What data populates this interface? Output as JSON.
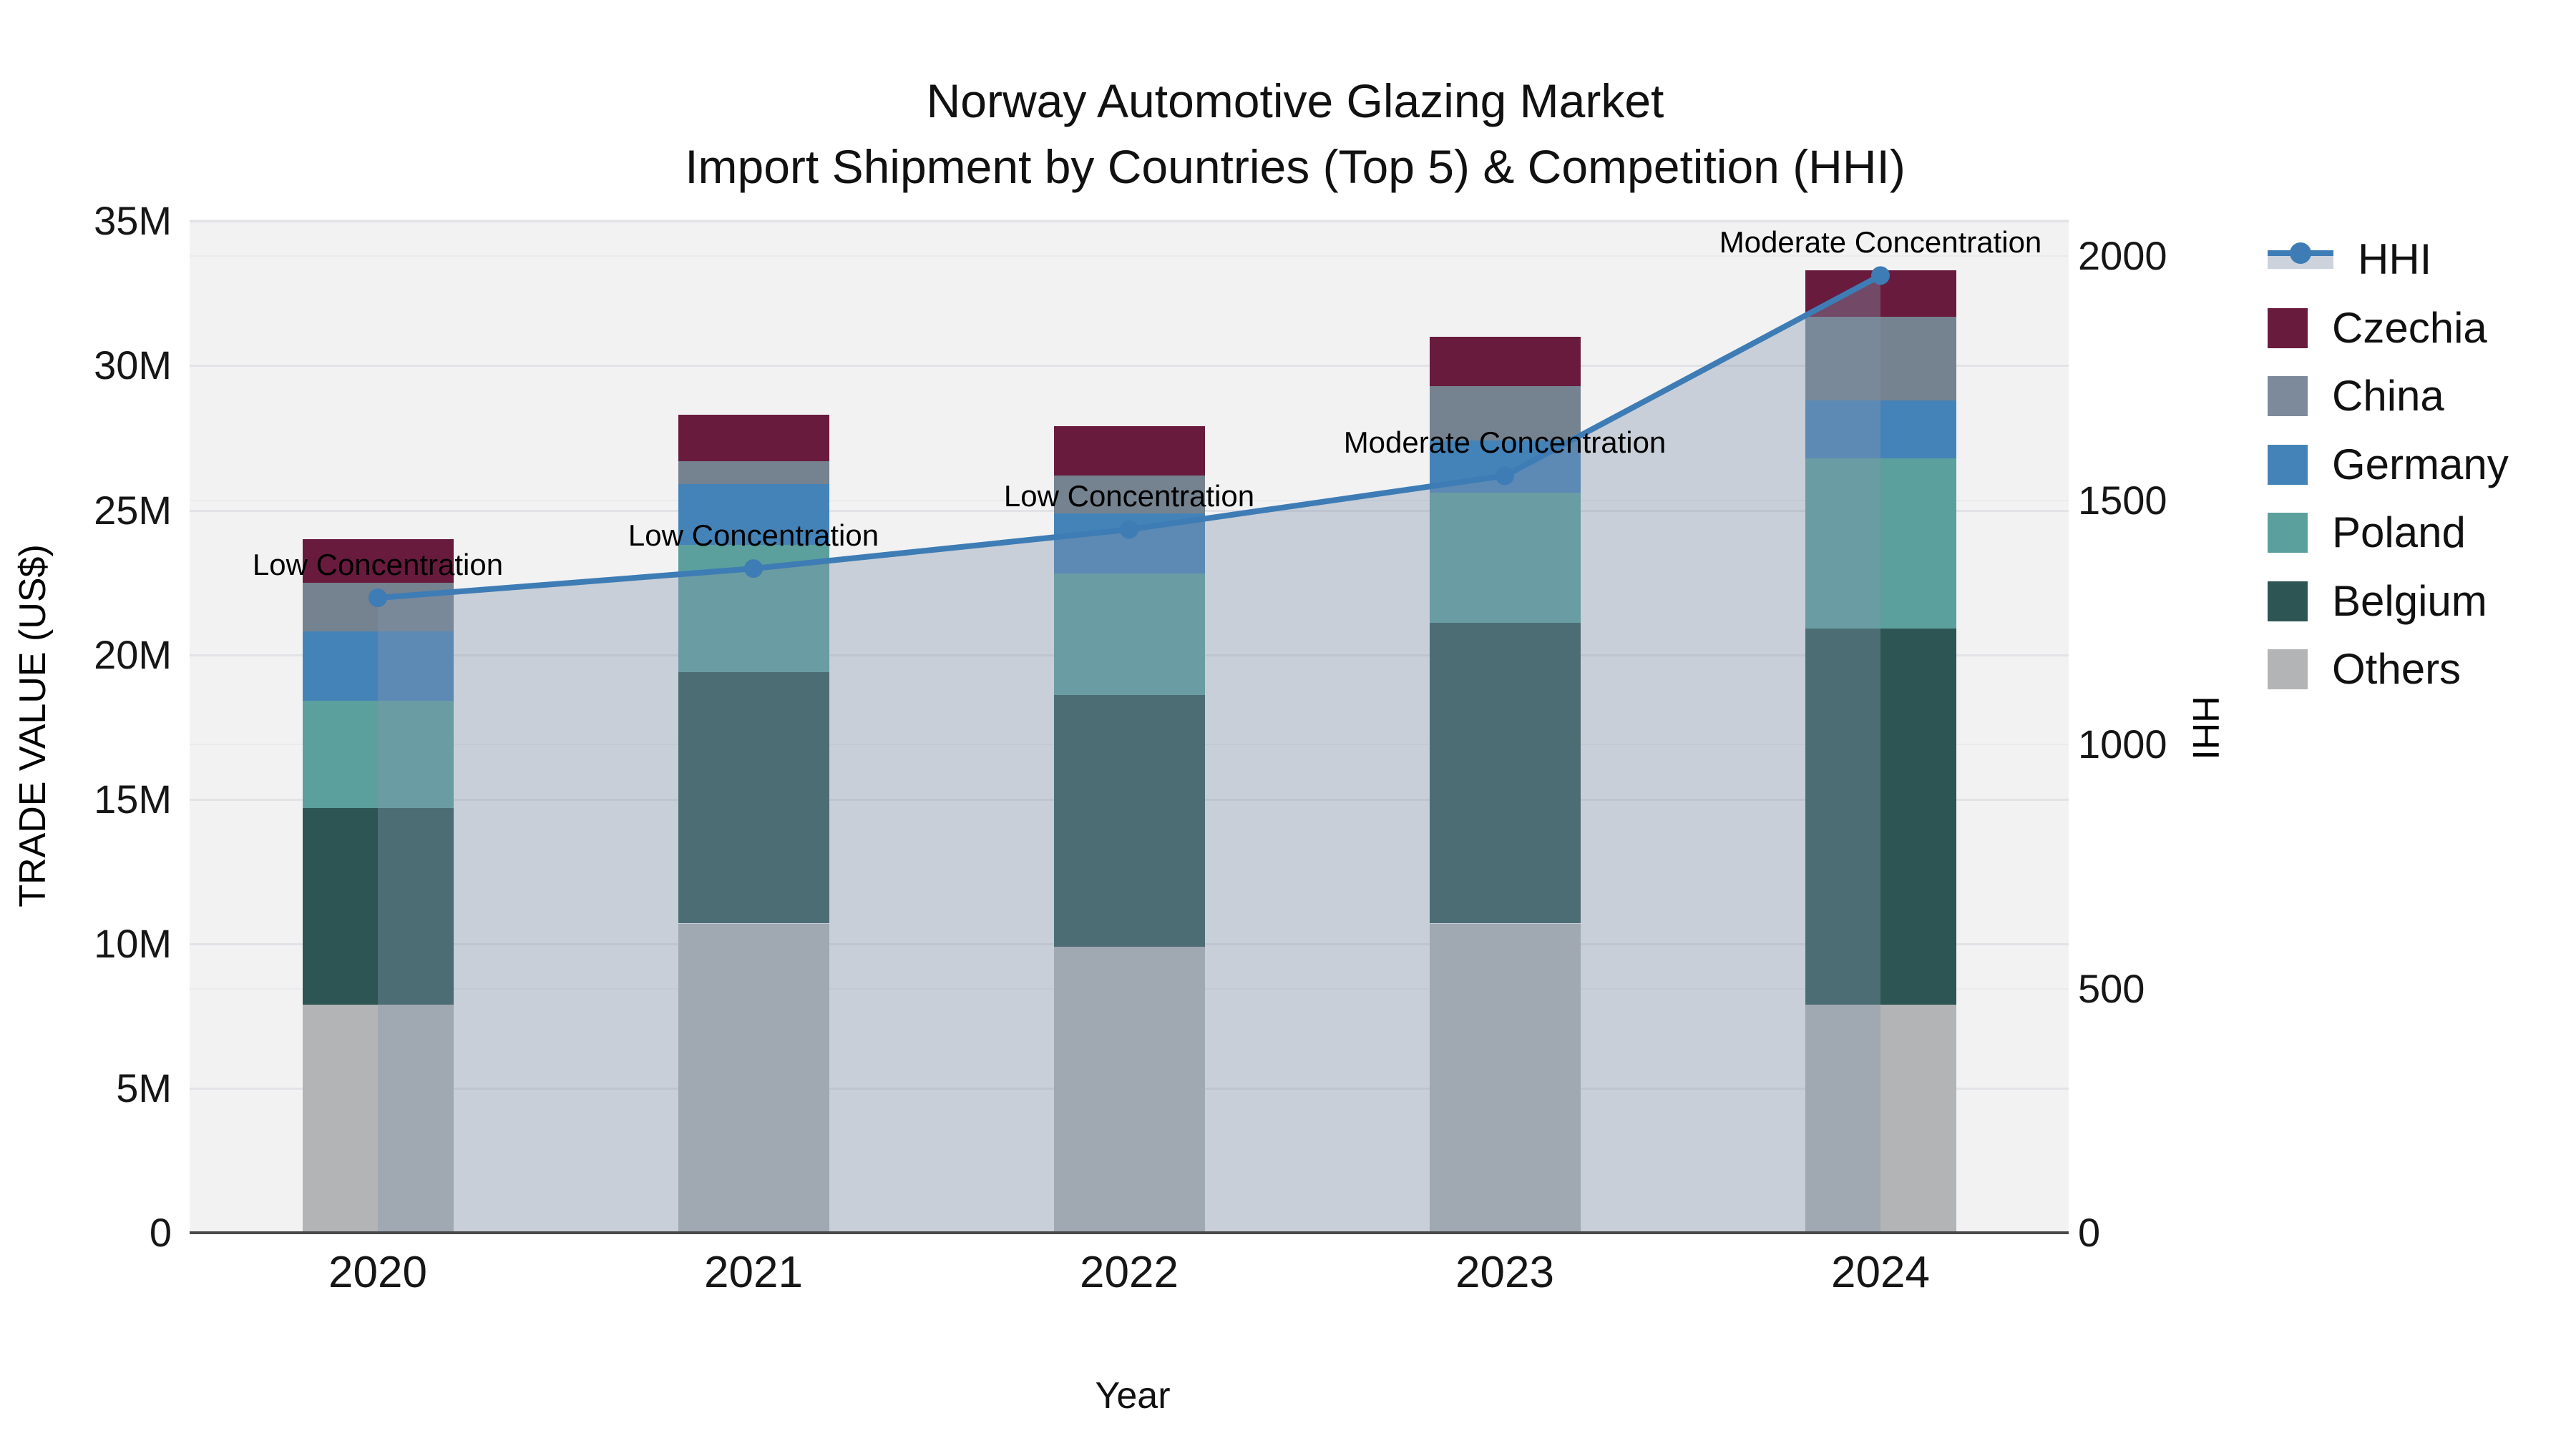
{
  "title": {
    "line1": "Norway Automotive Glazing Market",
    "line2": "Import Shipment by Countries (Top 5) & Competition (HHI)"
  },
  "axes": {
    "left": {
      "title": "TRADE VALUE (US$)",
      "ticks": [
        {
          "label": "0",
          "value": 0
        },
        {
          "label": "5M",
          "value": 5
        },
        {
          "label": "10M",
          "value": 10
        },
        {
          "label": "15M",
          "value": 15
        },
        {
          "label": "20M",
          "value": 20
        },
        {
          "label": "25M",
          "value": 25
        },
        {
          "label": "30M",
          "value": 30
        },
        {
          "label": "35M",
          "value": 35
        }
      ]
    },
    "right": {
      "title": "HHI",
      "ticks": [
        {
          "label": "0",
          "value": 0
        },
        {
          "label": "500",
          "value": 500
        },
        {
          "label": "1000",
          "value": 1000
        },
        {
          "label": "1500",
          "value": 1500
        },
        {
          "label": "2000",
          "value": 2000
        }
      ]
    },
    "x": {
      "title": "Year",
      "ticks": [
        "2020",
        "2021",
        "2022",
        "2023",
        "2024"
      ]
    }
  },
  "legend": {
    "items": [
      {
        "label": "HHI",
        "type": "line"
      },
      {
        "label": "Czechia",
        "type": "swatch",
        "color": "#681b3d"
      },
      {
        "label": "China",
        "type": "swatch",
        "color": "#7d8a9b"
      },
      {
        "label": "Germany",
        "type": "swatch",
        "color": "#4483b8"
      },
      {
        "label": "Poland",
        "type": "swatch",
        "color": "#5ba09d"
      },
      {
        "label": "Belgium",
        "type": "swatch",
        "color": "#2d5553"
      },
      {
        "label": "Others",
        "type": "swatch",
        "color": "#b2b4b5"
      }
    ]
  },
  "colors": {
    "hhi_line": "#3e7cb5",
    "area_fill": "#8496ad",
    "plot_bg": "#f2f2f3",
    "grid_major": "#e2e3e6",
    "grid_minor": "#eaebee",
    "axis_line": "#47484a",
    "series": {
      "Czechia": "#681b3d",
      "China": "#75828f",
      "Germany": "#4483b8",
      "Poland": "#5ba09d",
      "Belgium": "#2d5553",
      "Others": "#b2b4b5"
    }
  },
  "chart_data": {
    "type": "bar",
    "stacked": true,
    "title": "Norway Automotive Glazing Market — Import Shipment by Countries (Top 5) & Competition (HHI)",
    "categories": [
      "2020",
      "2021",
      "2022",
      "2023",
      "2024"
    ],
    "units": "million US$",
    "series": [
      {
        "name": "Others",
        "values": [
          7.9,
          10.7,
          9.9,
          10.7,
          7.9
        ]
      },
      {
        "name": "Belgium",
        "values": [
          6.8,
          8.7,
          8.7,
          10.4,
          13.0
        ]
      },
      {
        "name": "Poland",
        "values": [
          3.7,
          4.4,
          4.2,
          4.5,
          5.9
        ]
      },
      {
        "name": "Germany",
        "values": [
          2.4,
          2.1,
          2.1,
          1.8,
          2.0
        ]
      },
      {
        "name": "China",
        "values": [
          1.7,
          0.8,
          1.3,
          1.9,
          2.9
        ]
      },
      {
        "name": "Czechia",
        "values": [
          1.5,
          1.6,
          1.7,
          1.7,
          1.6
        ]
      }
    ],
    "totals": [
      24.0,
      28.3,
      27.9,
      31.0,
      33.3
    ],
    "line_series": {
      "name": "HHI",
      "axis": "right",
      "values": [
        1300,
        1360,
        1440,
        1550,
        1960
      ]
    },
    "annotations": [
      {
        "x": "2020",
        "text": "Low Concentration"
      },
      {
        "x": "2021",
        "text": "Low Concentration"
      },
      {
        "x": "2022",
        "text": "Low Concentration"
      },
      {
        "x": "2023",
        "text": "Moderate Concentration"
      },
      {
        "x": "2024",
        "text": "Moderate Concentration"
      }
    ],
    "xlabel": "Year",
    "ylabel": "TRADE VALUE (US$)",
    "y2label": "HHI",
    "ylim_musd": [
      0,
      35
    ],
    "y2lim": [
      0,
      2075
    ],
    "grid": true,
    "legend_position": "right"
  }
}
